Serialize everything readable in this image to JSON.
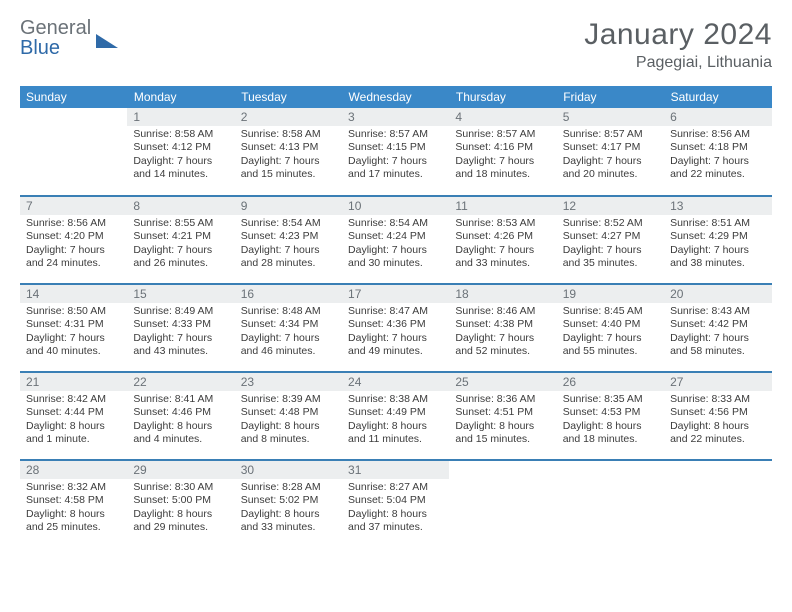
{
  "brand": {
    "word1": "General",
    "word2": "Blue"
  },
  "title": "January 2024",
  "location": "Pagegiai, Lithuania",
  "colors": {
    "header_bg": "#3a88c8",
    "row_divider": "#3a7fb5",
    "daynum_bg": "#eceeef",
    "text": "#333333",
    "muted": "#6b7278",
    "brand_blue": "#2f6aa8"
  },
  "daysOfWeek": [
    "Sunday",
    "Monday",
    "Tuesday",
    "Wednesday",
    "Thursday",
    "Friday",
    "Saturday"
  ],
  "weeks": [
    [
      null,
      {
        "n": "1",
        "sr": "8:58 AM",
        "ss": "4:12 PM",
        "dl": "7 hours and 14 minutes."
      },
      {
        "n": "2",
        "sr": "8:58 AM",
        "ss": "4:13 PM",
        "dl": "7 hours and 15 minutes."
      },
      {
        "n": "3",
        "sr": "8:57 AM",
        "ss": "4:15 PM",
        "dl": "7 hours and 17 minutes."
      },
      {
        "n": "4",
        "sr": "8:57 AM",
        "ss": "4:16 PM",
        "dl": "7 hours and 18 minutes."
      },
      {
        "n": "5",
        "sr": "8:57 AM",
        "ss": "4:17 PM",
        "dl": "7 hours and 20 minutes."
      },
      {
        "n": "6",
        "sr": "8:56 AM",
        "ss": "4:18 PM",
        "dl": "7 hours and 22 minutes."
      }
    ],
    [
      {
        "n": "7",
        "sr": "8:56 AM",
        "ss": "4:20 PM",
        "dl": "7 hours and 24 minutes."
      },
      {
        "n": "8",
        "sr": "8:55 AM",
        "ss": "4:21 PM",
        "dl": "7 hours and 26 minutes."
      },
      {
        "n": "9",
        "sr": "8:54 AM",
        "ss": "4:23 PM",
        "dl": "7 hours and 28 minutes."
      },
      {
        "n": "10",
        "sr": "8:54 AM",
        "ss": "4:24 PM",
        "dl": "7 hours and 30 minutes."
      },
      {
        "n": "11",
        "sr": "8:53 AM",
        "ss": "4:26 PM",
        "dl": "7 hours and 33 minutes."
      },
      {
        "n": "12",
        "sr": "8:52 AM",
        "ss": "4:27 PM",
        "dl": "7 hours and 35 minutes."
      },
      {
        "n": "13",
        "sr": "8:51 AM",
        "ss": "4:29 PM",
        "dl": "7 hours and 38 minutes."
      }
    ],
    [
      {
        "n": "14",
        "sr": "8:50 AM",
        "ss": "4:31 PM",
        "dl": "7 hours and 40 minutes."
      },
      {
        "n": "15",
        "sr": "8:49 AM",
        "ss": "4:33 PM",
        "dl": "7 hours and 43 minutes."
      },
      {
        "n": "16",
        "sr": "8:48 AM",
        "ss": "4:34 PM",
        "dl": "7 hours and 46 minutes."
      },
      {
        "n": "17",
        "sr": "8:47 AM",
        "ss": "4:36 PM",
        "dl": "7 hours and 49 minutes."
      },
      {
        "n": "18",
        "sr": "8:46 AM",
        "ss": "4:38 PM",
        "dl": "7 hours and 52 minutes."
      },
      {
        "n": "19",
        "sr": "8:45 AM",
        "ss": "4:40 PM",
        "dl": "7 hours and 55 minutes."
      },
      {
        "n": "20",
        "sr": "8:43 AM",
        "ss": "4:42 PM",
        "dl": "7 hours and 58 minutes."
      }
    ],
    [
      {
        "n": "21",
        "sr": "8:42 AM",
        "ss": "4:44 PM",
        "dl": "8 hours and 1 minute."
      },
      {
        "n": "22",
        "sr": "8:41 AM",
        "ss": "4:46 PM",
        "dl": "8 hours and 4 minutes."
      },
      {
        "n": "23",
        "sr": "8:39 AM",
        "ss": "4:48 PM",
        "dl": "8 hours and 8 minutes."
      },
      {
        "n": "24",
        "sr": "8:38 AM",
        "ss": "4:49 PM",
        "dl": "8 hours and 11 minutes."
      },
      {
        "n": "25",
        "sr": "8:36 AM",
        "ss": "4:51 PM",
        "dl": "8 hours and 15 minutes."
      },
      {
        "n": "26",
        "sr": "8:35 AM",
        "ss": "4:53 PM",
        "dl": "8 hours and 18 minutes."
      },
      {
        "n": "27",
        "sr": "8:33 AM",
        "ss": "4:56 PM",
        "dl": "8 hours and 22 minutes."
      }
    ],
    [
      {
        "n": "28",
        "sr": "8:32 AM",
        "ss": "4:58 PM",
        "dl": "8 hours and 25 minutes."
      },
      {
        "n": "29",
        "sr": "8:30 AM",
        "ss": "5:00 PM",
        "dl": "8 hours and 29 minutes."
      },
      {
        "n": "30",
        "sr": "8:28 AM",
        "ss": "5:02 PM",
        "dl": "8 hours and 33 minutes."
      },
      {
        "n": "31",
        "sr": "8:27 AM",
        "ss": "5:04 PM",
        "dl": "8 hours and 37 minutes."
      },
      null,
      null,
      null
    ]
  ],
  "labels": {
    "sunrise": "Sunrise: ",
    "sunset": "Sunset: ",
    "daylight": "Daylight: "
  }
}
